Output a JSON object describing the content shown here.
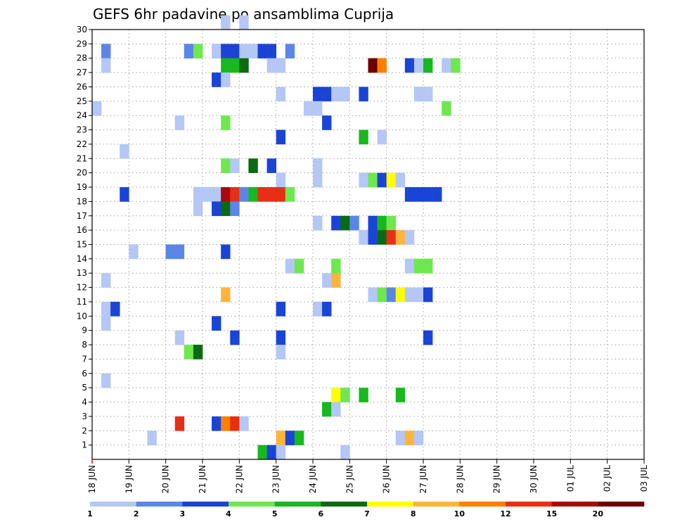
{
  "chart_data": {
    "type": "heatmap",
    "title": "GEFS 6hr padavine po ansamblima Cuprija",
    "xlabel": "",
    "ylabel": "",
    "x_tick_labels": [
      "18 JUN",
      "19 JUN",
      "20 JUN",
      "21 JUN",
      "22 JUN",
      "23 JUN",
      "24 JUN",
      "25 JUN",
      "26 JUN",
      "27 JUN",
      "28 JUN",
      "29 JUN",
      "30 JUN",
      "01 JUL",
      "02 JUL",
      "03 JUL"
    ],
    "xlim": [
      0,
      60
    ],
    "y_tick_labels": [
      "1",
      "2",
      "3",
      "4",
      "5",
      "6",
      "7",
      "8",
      "9",
      "10",
      "11",
      "12",
      "13",
      "14",
      "15",
      "16",
      "17",
      "18",
      "19",
      "20",
      "21",
      "22",
      "23",
      "24",
      "25",
      "26",
      "27",
      "28",
      "29",
      "30"
    ],
    "ylim": [
      0,
      30
    ],
    "grid": true,
    "legend": {
      "placement": "bottom",
      "levels": [
        "1",
        "2",
        "3",
        "4",
        "5",
        "6",
        "7",
        "8",
        "10",
        "12",
        "15",
        "20"
      ],
      "colors": [
        "#b4c7f5",
        "#5b86e8",
        "#1a44d6",
        "#6ee84e",
        "#18b81e",
        "#0a6b12",
        "#ffff00",
        "#ffb43c",
        "#ff7f00",
        "#e82e14",
        "#a80a0a",
        "#6e0000"
      ]
    },
    "cells": [
      [
        14,
        30,
        0
      ],
      [
        16,
        30,
        0
      ],
      [
        1,
        28,
        1
      ],
      [
        1,
        27,
        0
      ],
      [
        10,
        28,
        1
      ],
      [
        11,
        28,
        3
      ],
      [
        13,
        28,
        0
      ],
      [
        14,
        28,
        2
      ],
      [
        15,
        28,
        2
      ],
      [
        16,
        28,
        0
      ],
      [
        17,
        28,
        0
      ],
      [
        18,
        28,
        2
      ],
      [
        19,
        28,
        2
      ],
      [
        21,
        28,
        1
      ],
      [
        14,
        27,
        4
      ],
      [
        15,
        27,
        4
      ],
      [
        16,
        27,
        5
      ],
      [
        19,
        27,
        0
      ],
      [
        20,
        27,
        0
      ],
      [
        30,
        27,
        11
      ],
      [
        31,
        27,
        8
      ],
      [
        34,
        27,
        2
      ],
      [
        35,
        27,
        0
      ],
      [
        36,
        27,
        4
      ],
      [
        38,
        27,
        0
      ],
      [
        39,
        27,
        3
      ],
      [
        13,
        26,
        2
      ],
      [
        14,
        26,
        0
      ],
      [
        20,
        25,
        0
      ],
      [
        24,
        25,
        2
      ],
      [
        25,
        25,
        2
      ],
      [
        26,
        25,
        0
      ],
      [
        27,
        25,
        0
      ],
      [
        29,
        25,
        2
      ],
      [
        35,
        25,
        0
      ],
      [
        36,
        25,
        0
      ],
      [
        0,
        24,
        0
      ],
      [
        23,
        24,
        0
      ],
      [
        24,
        24,
        0
      ],
      [
        38,
        24,
        3
      ],
      [
        9,
        23,
        0
      ],
      [
        14,
        23,
        3
      ],
      [
        25,
        23,
        2
      ],
      [
        20,
        22,
        2
      ],
      [
        29,
        22,
        4
      ],
      [
        31,
        22,
        0
      ],
      [
        3,
        21,
        0
      ],
      [
        14,
        20,
        3
      ],
      [
        15,
        20,
        0
      ],
      [
        17,
        20,
        5
      ],
      [
        19,
        20,
        2
      ],
      [
        24,
        20,
        0
      ],
      [
        20,
        19,
        0
      ],
      [
        24,
        19,
        0
      ],
      [
        29,
        19,
        0
      ],
      [
        30,
        19,
        3
      ],
      [
        31,
        19,
        2
      ],
      [
        32,
        19,
        6
      ],
      [
        33,
        19,
        0
      ],
      [
        3,
        18,
        2
      ],
      [
        11,
        18,
        0
      ],
      [
        12,
        18,
        0
      ],
      [
        13,
        18,
        0
      ],
      [
        14,
        18,
        10
      ],
      [
        15,
        18,
        9
      ],
      [
        16,
        18,
        1
      ],
      [
        17,
        18,
        4
      ],
      [
        18,
        18,
        9
      ],
      [
        19,
        18,
        9
      ],
      [
        20,
        18,
        9
      ],
      [
        21,
        18,
        3
      ],
      [
        34,
        18,
        2
      ],
      [
        35,
        18,
        2
      ],
      [
        36,
        18,
        2
      ],
      [
        37,
        18,
        2
      ],
      [
        11,
        17,
        0
      ],
      [
        13,
        17,
        2
      ],
      [
        14,
        17,
        5
      ],
      [
        15,
        17,
        1
      ],
      [
        24,
        16,
        0
      ],
      [
        24,
        16,
        0
      ],
      [
        26,
        16,
        2
      ],
      [
        27,
        16,
        5
      ],
      [
        28,
        16,
        1
      ],
      [
        30,
        16,
        2
      ],
      [
        31,
        16,
        4
      ],
      [
        32,
        16,
        3
      ],
      [
        29,
        15,
        0
      ],
      [
        30,
        15,
        2
      ],
      [
        31,
        15,
        5
      ],
      [
        32,
        15,
        9
      ],
      [
        33,
        15,
        7
      ],
      [
        34,
        15,
        0
      ],
      [
        4,
        14,
        0
      ],
      [
        8,
        14,
        1
      ],
      [
        9,
        14,
        1
      ],
      [
        14,
        14,
        2
      ],
      [
        21,
        13,
        0
      ],
      [
        22,
        13,
        3
      ],
      [
        26,
        13,
        3
      ],
      [
        34,
        13,
        0
      ],
      [
        35,
        13,
        3
      ],
      [
        36,
        13,
        3
      ],
      [
        1,
        12,
        0
      ],
      [
        25,
        12,
        0
      ],
      [
        26,
        12,
        7
      ],
      [
        14,
        11,
        7
      ],
      [
        30,
        11,
        0
      ],
      [
        31,
        11,
        3
      ],
      [
        32,
        11,
        1
      ],
      [
        33,
        11,
        6
      ],
      [
        34,
        11,
        0
      ],
      [
        35,
        11,
        0
      ],
      [
        36,
        11,
        2
      ],
      [
        1,
        10,
        0
      ],
      [
        2,
        10,
        2
      ],
      [
        20,
        10,
        2
      ],
      [
        24,
        10,
        0
      ],
      [
        25,
        10,
        2
      ],
      [
        1,
        9,
        0
      ],
      [
        13,
        9,
        2
      ],
      [
        9,
        8,
        0
      ],
      [
        15,
        8,
        2
      ],
      [
        20,
        8,
        2
      ],
      [
        36,
        8,
        2
      ],
      [
        10,
        7,
        3
      ],
      [
        11,
        7,
        5
      ],
      [
        20,
        7,
        0
      ],
      [
        1,
        5,
        0
      ],
      [
        26,
        4,
        6
      ],
      [
        27,
        4,
        3
      ],
      [
        29,
        4,
        4
      ],
      [
        33,
        4,
        4
      ],
      [
        25,
        3,
        4
      ],
      [
        26,
        3,
        0
      ],
      [
        9,
        2,
        9
      ],
      [
        13,
        2,
        2
      ],
      [
        14,
        2,
        8
      ],
      [
        15,
        2,
        9
      ],
      [
        16,
        2,
        0
      ],
      [
        6,
        1,
        0
      ],
      [
        20,
        1,
        7
      ],
      [
        21,
        1,
        2
      ],
      [
        22,
        1,
        4
      ],
      [
        33,
        1,
        0
      ],
      [
        34,
        1,
        7
      ],
      [
        35,
        1,
        0
      ],
      [
        18,
        0,
        4
      ],
      [
        19,
        0,
        2
      ],
      [
        20,
        0,
        0
      ],
      [
        27,
        0,
        0
      ]
    ]
  }
}
